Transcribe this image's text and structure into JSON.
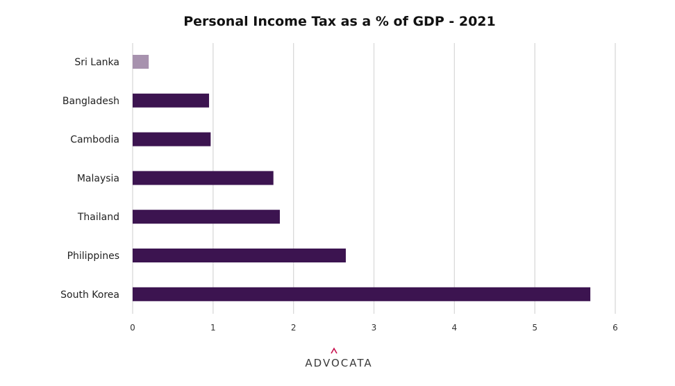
{
  "brand": {
    "logo_text": "ADVOCATA",
    "accent_color": "#c8104e"
  },
  "chart_data": {
    "type": "bar",
    "orientation": "horizontal",
    "title": "Personal Income Tax as a % of GDP - 2021",
    "xlabel": "",
    "ylabel": "",
    "categories": [
      "Sri Lanka",
      "Bangladesh",
      "Cambodia",
      "Malaysia",
      "Thailand",
      "Philippines",
      "South Korea"
    ],
    "values": [
      0.2,
      0.95,
      0.97,
      1.75,
      1.83,
      2.65,
      5.69
    ],
    "xlim": [
      0,
      6
    ],
    "xticks": [
      "0",
      "1",
      "2",
      "3",
      "4",
      "5",
      "6"
    ],
    "grid": "vertical",
    "legend": "none",
    "colors": {
      "bar": "#3c1450",
      "highlight_bar": "#a792ae",
      "gridline": "#d9d9d9"
    },
    "highlight_category": "Sri Lanka"
  }
}
